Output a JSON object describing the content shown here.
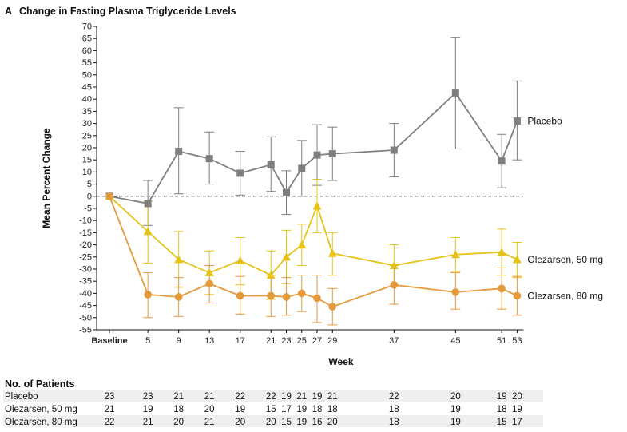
{
  "chart_data": {
    "type": "line",
    "panel_letter": "A",
    "title": "Change in Fasting Plasma Triglyceride Levels",
    "xlabel": "Week",
    "ylabel": "Mean Percent Change",
    "ylim": [
      -55,
      70
    ],
    "ytick_step": 5,
    "x": [
      0,
      5,
      9,
      13,
      17,
      21,
      23,
      25,
      27,
      29,
      37,
      45,
      51,
      53
    ],
    "x_tick_labels": [
      "Baseline",
      "5",
      "9",
      "13",
      "17",
      "21",
      "23",
      "25",
      "27",
      "29",
      "37",
      "45",
      "51",
      "53"
    ],
    "reference_line": 0,
    "series": [
      {
        "name": "Placebo",
        "label": "Placebo",
        "color": "#7f7f7f",
        "marker": "square",
        "values": [
          0,
          -3,
          18.5,
          15.5,
          9.5,
          13,
          1.5,
          11.5,
          17,
          17.5,
          19,
          42.5,
          14.5,
          31
        ],
        "err_low": [
          0,
          -12,
          1,
          5,
          0.5,
          2,
          -7.5,
          0,
          4.5,
          6.5,
          8,
          19.5,
          3.5,
          15
        ],
        "err_high": [
          0,
          6.5,
          36.5,
          26.5,
          18.5,
          24.5,
          10.5,
          23,
          29.5,
          28.5,
          30,
          65.5,
          25.5,
          47.5
        ]
      },
      {
        "name": "Olezarsen, 50 mg",
        "label": "Olezarsen, 50 mg",
        "color": "#e5c31c",
        "marker": "triangle",
        "values": [
          0,
          -14.5,
          -26,
          -31.5,
          -26.5,
          -32.5,
          -25,
          -20,
          -4,
          -23.5,
          -28.5,
          -24,
          -23,
          -26
        ],
        "err_low": [
          0,
          -27.5,
          -37.5,
          -40.5,
          -36.5,
          -42.5,
          -36,
          -28.5,
          -15,
          -32.5,
          -37,
          -31,
          -32.5,
          -33.5
        ],
        "err_high": [
          0,
          -2,
          -14.5,
          -22.5,
          -17,
          -22.5,
          -14,
          -11.5,
          7,
          -15,
          -20,
          -17,
          -13.5,
          -19
        ]
      },
      {
        "name": "Olezarsen, 80 mg",
        "label": "Olezarsen, 80 mg",
        "color": "#e39a3a",
        "marker": "circle",
        "values": [
          0,
          -40.5,
          -41.5,
          -36,
          -41,
          -41,
          -41.5,
          -40,
          -42,
          -45.5,
          -36.5,
          -39.5,
          -38,
          -41
        ],
        "err_low": [
          0,
          -50,
          -49.5,
          -44,
          -48.5,
          -49.5,
          -49,
          -47.5,
          -52,
          -53,
          -44.5,
          -46.5,
          -46.5,
          -49
        ],
        "err_high": [
          0,
          -31.5,
          -33.5,
          -28.5,
          -33,
          -32.5,
          -33.5,
          -32.5,
          -32.5,
          -38,
          -28.5,
          -31.5,
          -29.5,
          -33
        ]
      }
    ],
    "patients_table": {
      "title": "No. of Patients",
      "rows": [
        {
          "label": "Placebo",
          "counts": [
            "23",
            "23",
            "21",
            "21",
            "22",
            "22",
            "19",
            "21",
            "19",
            "21",
            "22",
            "20",
            "19",
            "20"
          ]
        },
        {
          "label": "Olezarsen, 50 mg",
          "counts": [
            "21",
            "19",
            "18",
            "20",
            "19",
            "15",
            "17",
            "19",
            "18",
            "18",
            "18",
            "19",
            "18",
            "19"
          ]
        },
        {
          "label": "Olezarsen, 80 mg",
          "counts": [
            "22",
            "21",
            "20",
            "21",
            "20",
            "20",
            "15",
            "19",
            "16",
            "20",
            "18",
            "19",
            "15",
            "17"
          ]
        }
      ]
    }
  }
}
